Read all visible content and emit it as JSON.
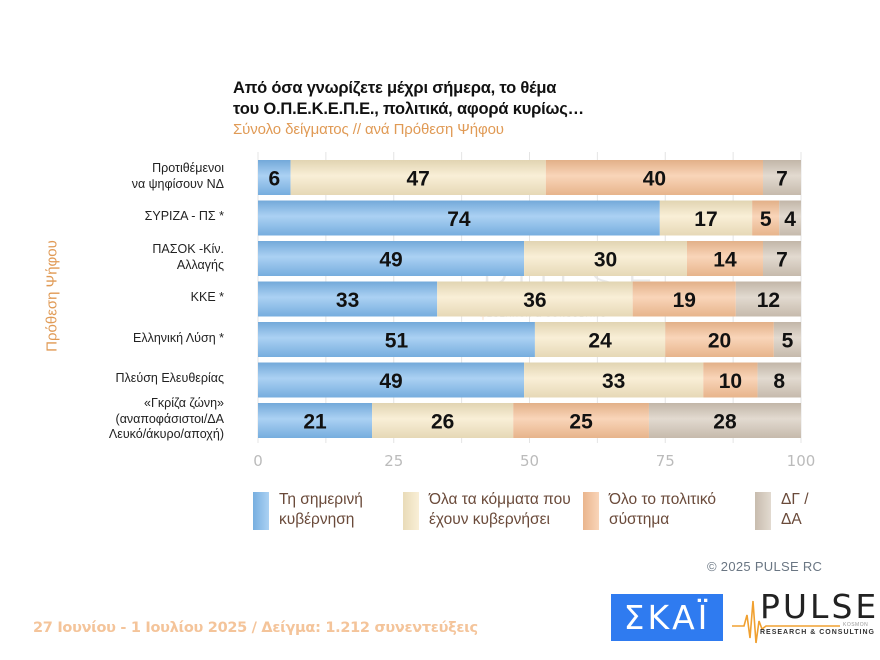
{
  "title_line1": "Από όσα γνωρίζετε μέχρι σήμερα, το θέμα",
  "title_line2": "του  Ο.Π.Ε.Κ.Ε.Π.Ε.,  πολιτικά, αφορά κυρίως…",
  "subtitle": "Σύνολο δείγματος // ανά Πρόθεση Ψήφου",
  "y_axis_title": "Πρόθεση Ψήφου",
  "colors": {
    "government": "#7db8ec",
    "all_parties": "#f5e6c2",
    "whole_system": "#f6bf94",
    "dk_na": "#d3c6b7"
  },
  "chart_data": {
    "type": "bar",
    "orientation": "horizontal",
    "stacked": true,
    "title": "Από όσα γνωρίζετε μέχρι σήμερα, το θέμα του Ο.Π.Ε.Κ.Ε.Π.Ε., πολιτικά, αφορά κυρίως…",
    "subtitle": "Σύνολο δείγματος // ανά Πρόθεση Ψήφου",
    "ylabel": "Πρόθεση Ψήφου",
    "xlabel": "",
    "xlim": [
      0,
      100
    ],
    "x_ticks": [
      "0",
      "25",
      "50",
      "75",
      "100"
    ],
    "grid": true,
    "legend_position": "bottom",
    "categories": [
      [
        "Προτιθέμενοι",
        "να ψηφίσουν ΝΔ"
      ],
      [
        "ΣΥΡΙΖΑ - ΠΣ *"
      ],
      [
        "ΠΑΣΟΚ -Κίν.",
        "Αλλαγής"
      ],
      [
        "ΚΚΕ *"
      ],
      [
        "Ελληνική Λύση *"
      ],
      [
        "Πλεύση Ελευθερίας"
      ],
      [
        "«Γκρίζα ζώνη»",
        "(αναποφάσιστοι/ΔΑ",
        "Λευκό/άκυρο/αποχή)"
      ]
    ],
    "series": [
      {
        "name": "Τη σημερινή κυβέρνηση",
        "legend_lines": [
          "Τη σημερινή",
          "κυβέρνηση"
        ],
        "color_key": "government",
        "values": [
          6,
          74,
          49,
          33,
          51,
          49,
          21
        ]
      },
      {
        "name": "Όλα τα κόμματα που έχουν κυβερνήσει",
        "legend_lines": [
          "Όλα τα κόμματα που",
          "έχουν κυβερνήσει"
        ],
        "color_key": "all_parties",
        "values": [
          47,
          17,
          30,
          36,
          24,
          33,
          26
        ]
      },
      {
        "name": "Όλο το πολιτικό σύστημα",
        "legend_lines": [
          "Όλο το πολιτικό",
          "σύστημα"
        ],
        "color_key": "whole_system",
        "values": [
          40,
          5,
          14,
          19,
          20,
          10,
          25
        ]
      },
      {
        "name": "ΔΓ / ΔΑ",
        "legend_lines": [
          "ΔΓ /",
          "ΔΑ"
        ],
        "color_key": "dk_na",
        "values": [
          7,
          4,
          7,
          12,
          5,
          8,
          28
        ]
      }
    ]
  },
  "copyright": "©  2025  PULSE RC",
  "footer_note": "27 Ιουνίου - 1 Ιουλίου 2025  /  Δείγμα:  1.212 συνεντεύξεις",
  "logos": {
    "skai": "ΣΚΑΪ",
    "pulse": "PULSE",
    "pulse_tagline": "RESEARCH & CONSULTING",
    "pulse_kosmon": "KOSMON"
  },
  "watermark": {
    "word": "PULSE",
    "tagline": "RESEARCH & CONSULTING"
  }
}
